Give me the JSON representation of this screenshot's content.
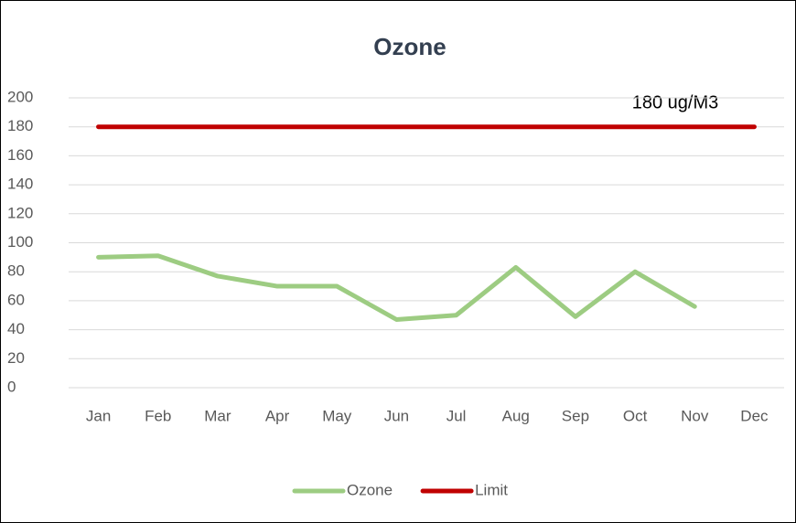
{
  "chart_data": {
    "type": "line",
    "title": "Ozone",
    "categories": [
      "Jan",
      "Feb",
      "Mar",
      "Apr",
      "May",
      "Jun",
      "Jul",
      "Aug",
      "Sep",
      "Oct",
      "Nov",
      "Dec"
    ],
    "series": [
      {
        "name": "Ozone",
        "color": "#9dcc82",
        "values": [
          90,
          91,
          77,
          70,
          70,
          47,
          50,
          83,
          49,
          80,
          56,
          null
        ]
      },
      {
        "name": "Limit",
        "color": "#c00000",
        "values": [
          180,
          180,
          180,
          180,
          180,
          180,
          180,
          180,
          180,
          180,
          180,
          180
        ]
      }
    ],
    "annotation": "180 ug/M3",
    "ylim": [
      0,
      200
    ],
    "yticks": [
      0,
      20,
      40,
      60,
      80,
      100,
      120,
      140,
      160,
      180,
      200
    ],
    "grid": true,
    "legend": "bottom"
  }
}
